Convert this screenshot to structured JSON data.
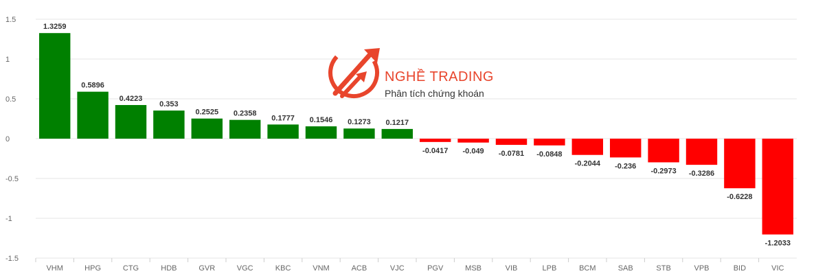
{
  "watermark": {
    "title": "NGHỀ TRADING",
    "subtitle": "Phân tích chứng khoán",
    "color": "#e8452c"
  },
  "chart_data": {
    "type": "bar",
    "title": "",
    "xlabel": "",
    "ylabel": "",
    "ylim": [
      -1.5,
      1.5
    ],
    "yticks": [
      1.5,
      1,
      0.5,
      0,
      -0.5,
      -1,
      -1.5
    ],
    "grid": true,
    "positive_color": "#008000",
    "negative_color": "#ff0000",
    "categories": [
      "VHM",
      "HPG",
      "CTG",
      "HDB",
      "GVR",
      "VGC",
      "KBC",
      "VNM",
      "ACB",
      "VJC",
      "PGV",
      "MSB",
      "VIB",
      "LPB",
      "BCM",
      "SAB",
      "STB",
      "VPB",
      "BID",
      "VIC"
    ],
    "values": [
      1.3259,
      0.5896,
      0.4223,
      0.353,
      0.2525,
      0.2358,
      0.1777,
      0.1546,
      0.1273,
      0.1217,
      -0.0417,
      -0.049,
      -0.0781,
      -0.0848,
      -0.2044,
      -0.236,
      -0.2973,
      -0.3286,
      -0.6228,
      -1.2033
    ]
  }
}
